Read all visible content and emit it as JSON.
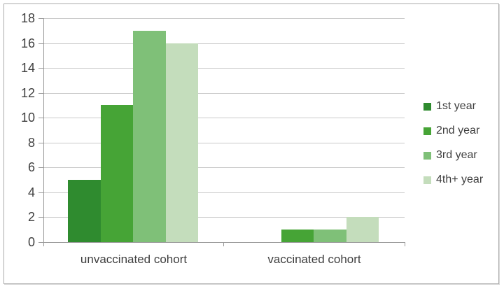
{
  "chart_data": {
    "type": "bar",
    "title": "",
    "xlabel": "",
    "ylabel": "",
    "categories": [
      "unvaccinated cohort",
      "vaccinated cohort"
    ],
    "series": [
      {
        "name": "1st year",
        "color": "#2f8b2f",
        "values": [
          5,
          0
        ]
      },
      {
        "name": "2nd year",
        "color": "#46a436",
        "values": [
          11,
          1
        ]
      },
      {
        "name": "3rd year",
        "color": "#7fc078",
        "values": [
          17,
          1
        ]
      },
      {
        "name": "4th+ year",
        "color": "#c4ddbc",
        "values": [
          16,
          2
        ]
      }
    ],
    "ylim": [
      0,
      18
    ],
    "yticks": [
      0,
      2,
      4,
      6,
      8,
      10,
      12,
      14,
      16,
      18
    ],
    "grid": true,
    "legend_position": "right"
  },
  "colors": {
    "background": "#ffffff",
    "frame_border": "#ababab",
    "gridline": "#c9c9c9",
    "axis": "#9a9a9a",
    "text": "#3f3f3f"
  }
}
